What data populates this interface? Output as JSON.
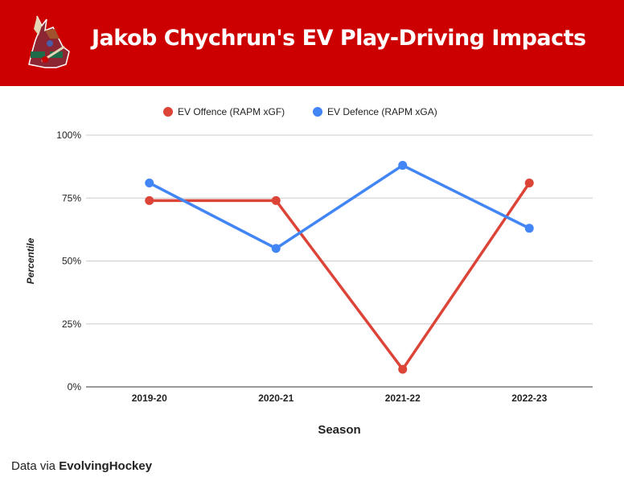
{
  "header": {
    "title": "Jakob Chychrun's EV Play-Driving Impacts",
    "logo_icon": "coyotes-logo"
  },
  "footer": {
    "prefix": "Data via ",
    "source": "EvolvingHockey"
  },
  "chart_data": {
    "type": "line",
    "title": "Jakob Chychrun's EV Play-Driving Impacts",
    "xlabel": "Season",
    "ylabel": "Percentile",
    "categories": [
      "2019-20",
      "2020-21",
      "2021-22",
      "2022-23"
    ],
    "ylim": [
      0,
      100
    ],
    "yticks": [
      0,
      25,
      50,
      75,
      100
    ],
    "ytick_labels": [
      "0%",
      "25%",
      "50%",
      "75%",
      "100%"
    ],
    "grid": true,
    "legend_position": "top-center",
    "series": [
      {
        "name": "EV Offence (RAPM xGF)",
        "color": "#db4437",
        "values": [
          74,
          74,
          7,
          81
        ]
      },
      {
        "name": "EV Defence (RAPM xGA)",
        "color": "#4285f4",
        "values": [
          81,
          55,
          88,
          63
        ]
      }
    ]
  }
}
